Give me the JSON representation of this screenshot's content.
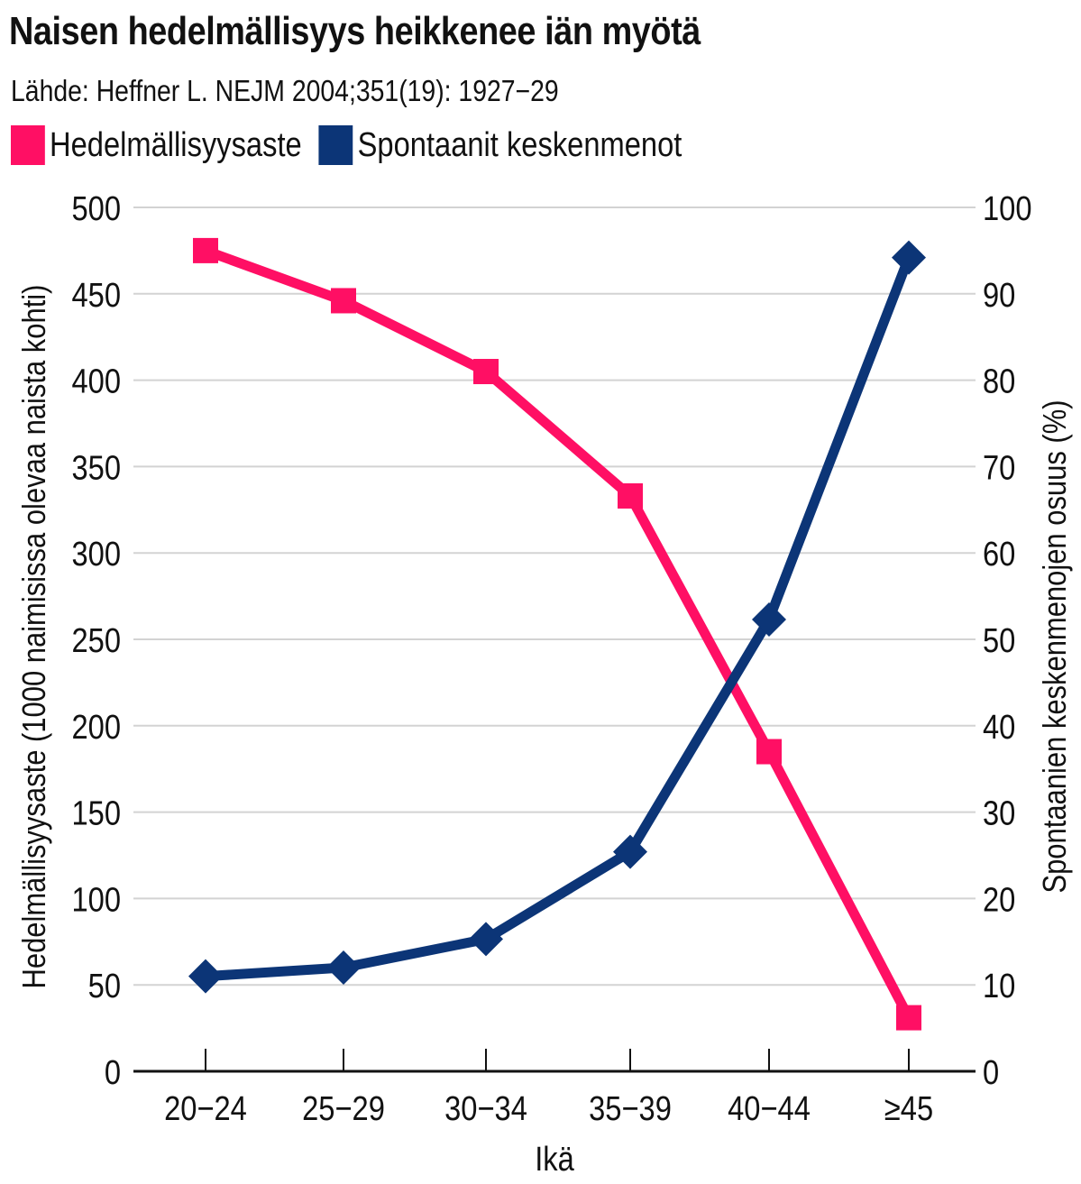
{
  "chart_data": {
    "type": "line",
    "title": "Naisen hedelmällisyys heikkenee iän myötä",
    "subtitle": "Lähde: Heffner L. NEJM 2004;351(19): 1927−29",
    "xlabel": "Ikä",
    "ylabel_left": "Hedelmällisyysaste (1000 naimisissa olevaa naista kohti)",
    "ylabel_right": "Spontaanien keskenmenojen osuus (%)",
    "categories": [
      "20−24",
      "25−29",
      "30−34",
      "35−39",
      "40−44",
      "≥45"
    ],
    "y_left_range": [
      0,
      500
    ],
    "y_left_ticks": [
      "0",
      "50",
      "100",
      "150",
      "200",
      "250",
      "300",
      "350",
      "400",
      "450",
      "500"
    ],
    "y_right_range": [
      0,
      100
    ],
    "y_right_ticks": [
      "0",
      "10",
      "20",
      "30",
      "40",
      "50",
      "60",
      "70",
      "80",
      "90",
      "100"
    ],
    "grid": true,
    "legend_position": "top-left",
    "series": [
      {
        "name": "Hedelmällisyysaste",
        "axis": "left",
        "marker": "square",
        "color": "#ff0f64",
        "values": [
          475,
          446,
          405,
          333,
          185,
          31
        ]
      },
      {
        "name": "Spontaanit keskenmenot",
        "axis": "right",
        "marker": "diamond",
        "color": "#0c3577",
        "values": [
          11,
          12,
          15.3,
          25.4,
          52.3,
          94.2
        ]
      }
    ]
  }
}
